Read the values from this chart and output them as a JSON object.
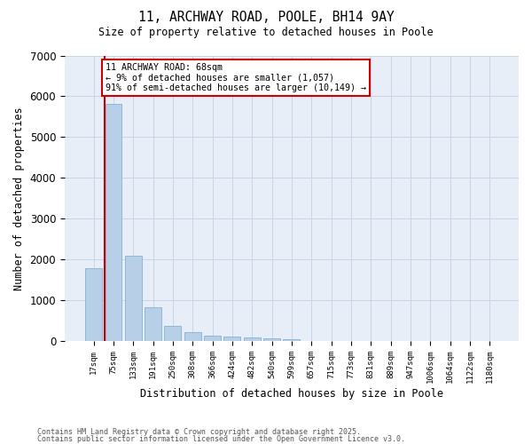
{
  "title1": "11, ARCHWAY ROAD, POOLE, BH14 9AY",
  "title2": "Size of property relative to detached houses in Poole",
  "xlabel": "Distribution of detached houses by size in Poole",
  "ylabel": "Number of detached properties",
  "categories": [
    "17sqm",
    "75sqm",
    "133sqm",
    "191sqm",
    "250sqm",
    "308sqm",
    "366sqm",
    "424sqm",
    "482sqm",
    "540sqm",
    "599sqm",
    "657sqm",
    "715sqm",
    "773sqm",
    "831sqm",
    "889sqm",
    "947sqm",
    "1006sqm",
    "1064sqm",
    "1122sqm",
    "1180sqm"
  ],
  "values": [
    1780,
    5820,
    2100,
    820,
    370,
    215,
    135,
    110,
    90,
    65,
    50,
    0,
    0,
    0,
    0,
    0,
    0,
    0,
    0,
    0,
    0
  ],
  "bar_color": "#b8cfe8",
  "bar_edge_color": "#7aa8cc",
  "highlight_color": "#cc0000",
  "annotation_text": "11 ARCHWAY ROAD: 68sqm\n← 9% of detached houses are smaller (1,057)\n91% of semi-detached houses are larger (10,149) →",
  "annotation_box_color": "#cc0000",
  "ylim": [
    0,
    7000
  ],
  "yticks": [
    0,
    1000,
    2000,
    3000,
    4000,
    5000,
    6000,
    7000
  ],
  "grid_color": "#c8d4e8",
  "bg_color": "#e8eef8",
  "footer1": "Contains HM Land Registry data © Crown copyright and database right 2025.",
  "footer2": "Contains public sector information licensed under the Open Government Licence v3.0."
}
